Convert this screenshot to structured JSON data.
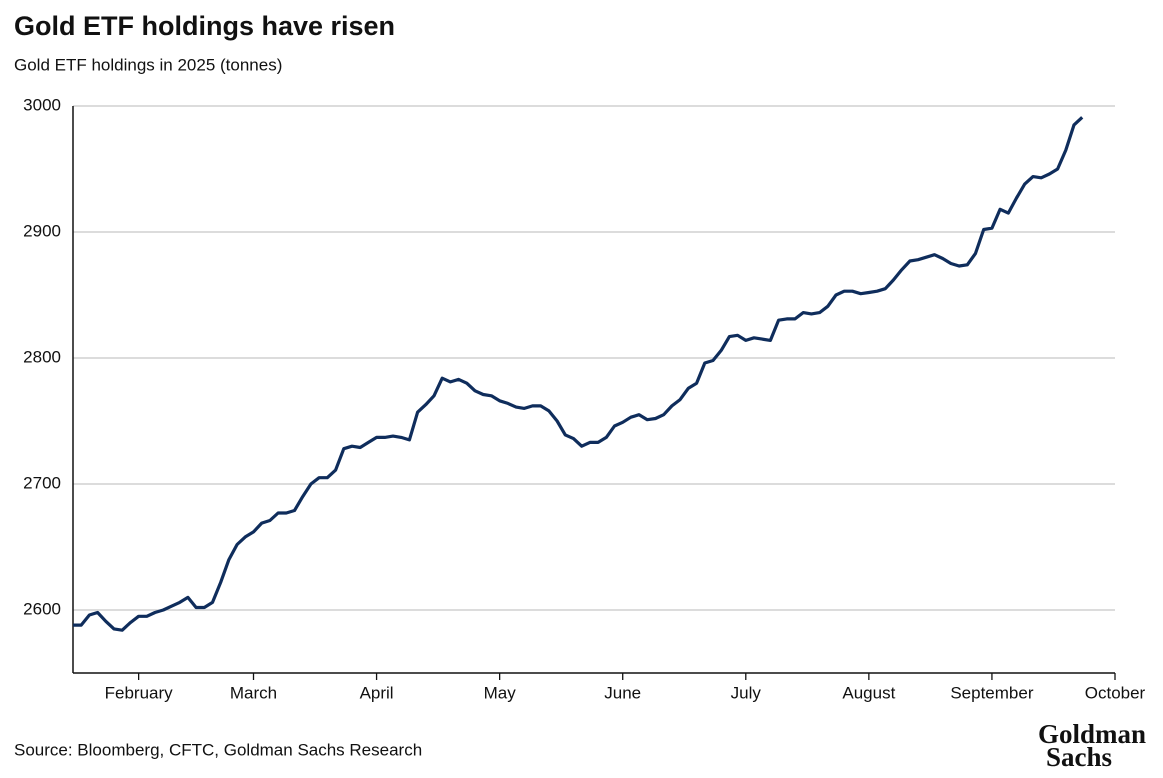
{
  "chart_data": {
    "type": "line",
    "title": "Gold ETF holdings have risen",
    "subtitle": "Gold ETF holdings in 2025 (tonnes)",
    "source": "Source: Bloomberg, CFTC, Goldman Sachs Research",
    "logo": [
      "Goldman",
      "Sachs"
    ],
    "categories": [
      null,
      null,
      null,
      null,
      null,
      null,
      null,
      null,
      "February",
      null,
      null,
      null,
      null,
      null,
      null,
      null,
      null,
      null,
      null,
      null,
      null,
      null,
      "March",
      null,
      null,
      null,
      null,
      null,
      null,
      null,
      null,
      null,
      null,
      null,
      null,
      null,
      null,
      "April",
      null,
      null,
      null,
      null,
      null,
      null,
      null,
      null,
      null,
      null,
      null,
      null,
      null,
      null,
      "May",
      null,
      null,
      null,
      null,
      null,
      null,
      null,
      null,
      null,
      null,
      null,
      null,
      null,
      null,
      "June",
      null,
      null,
      null,
      null,
      null,
      null,
      null,
      null,
      null,
      null,
      null,
      null,
      null,
      null,
      "July",
      null,
      null,
      null,
      null,
      null,
      null,
      null,
      null,
      null,
      null,
      null,
      null,
      null,
      null,
      "August",
      null,
      null,
      null,
      null,
      null,
      null,
      null,
      null,
      null,
      null,
      null,
      null,
      null,
      null,
      "September",
      null,
      null,
      null,
      null,
      null,
      null,
      null,
      null,
      null,
      null,
      null,
      null,
      null,
      null,
      "October"
    ],
    "series": [
      {
        "name": "Gold ETF holdings",
        "color": "#0f2d5c",
        "values": [
          2588,
          2588,
          2596,
          2598,
          2591,
          2585,
          2584,
          2590,
          2595,
          2595,
          2598,
          2600,
          2603,
          2606,
          2610,
          2602,
          2602,
          2606,
          2622,
          2640,
          2652,
          2658,
          2662,
          2669,
          2671,
          2677,
          2677,
          2679,
          2690,
          2700,
          2705,
          2705,
          2711,
          2728,
          2730,
          2729,
          2733,
          2737,
          2737,
          2738,
          2737,
          2735,
          2757,
          2763,
          2770,
          2784,
          2781,
          2783,
          2780,
          2774,
          2771,
          2770,
          2766,
          2764,
          2761,
          2760,
          2762,
          2762,
          2758,
          2750,
          2739,
          2736,
          2730,
          2733,
          2733,
          2737,
          2746,
          2749,
          2753,
          2755,
          2751,
          2752,
          2755,
          2762,
          2767,
          2776,
          2780,
          2796,
          2798,
          2806,
          2817,
          2818,
          2814,
          2816,
          2815,
          2814,
          2830,
          2831,
          2831,
          2836,
          2835,
          2836,
          2841,
          2850,
          2853,
          2853,
          2851,
          2852,
          2853,
          2855,
          2862,
          2870,
          2877,
          2878,
          2880,
          2882,
          2879,
          2875,
          2873,
          2874,
          2883,
          2902,
          2903,
          2918,
          2915,
          2927,
          2938,
          2944,
          2943,
          2946,
          2950,
          2965,
          2985,
          2991,
          null,
          null,
          null,
          null
        ]
      }
    ],
    "ylim": [
      2550,
      3000
    ],
    "yticks": [
      2600,
      2700,
      2800,
      2900,
      3000
    ],
    "grid": true
  }
}
